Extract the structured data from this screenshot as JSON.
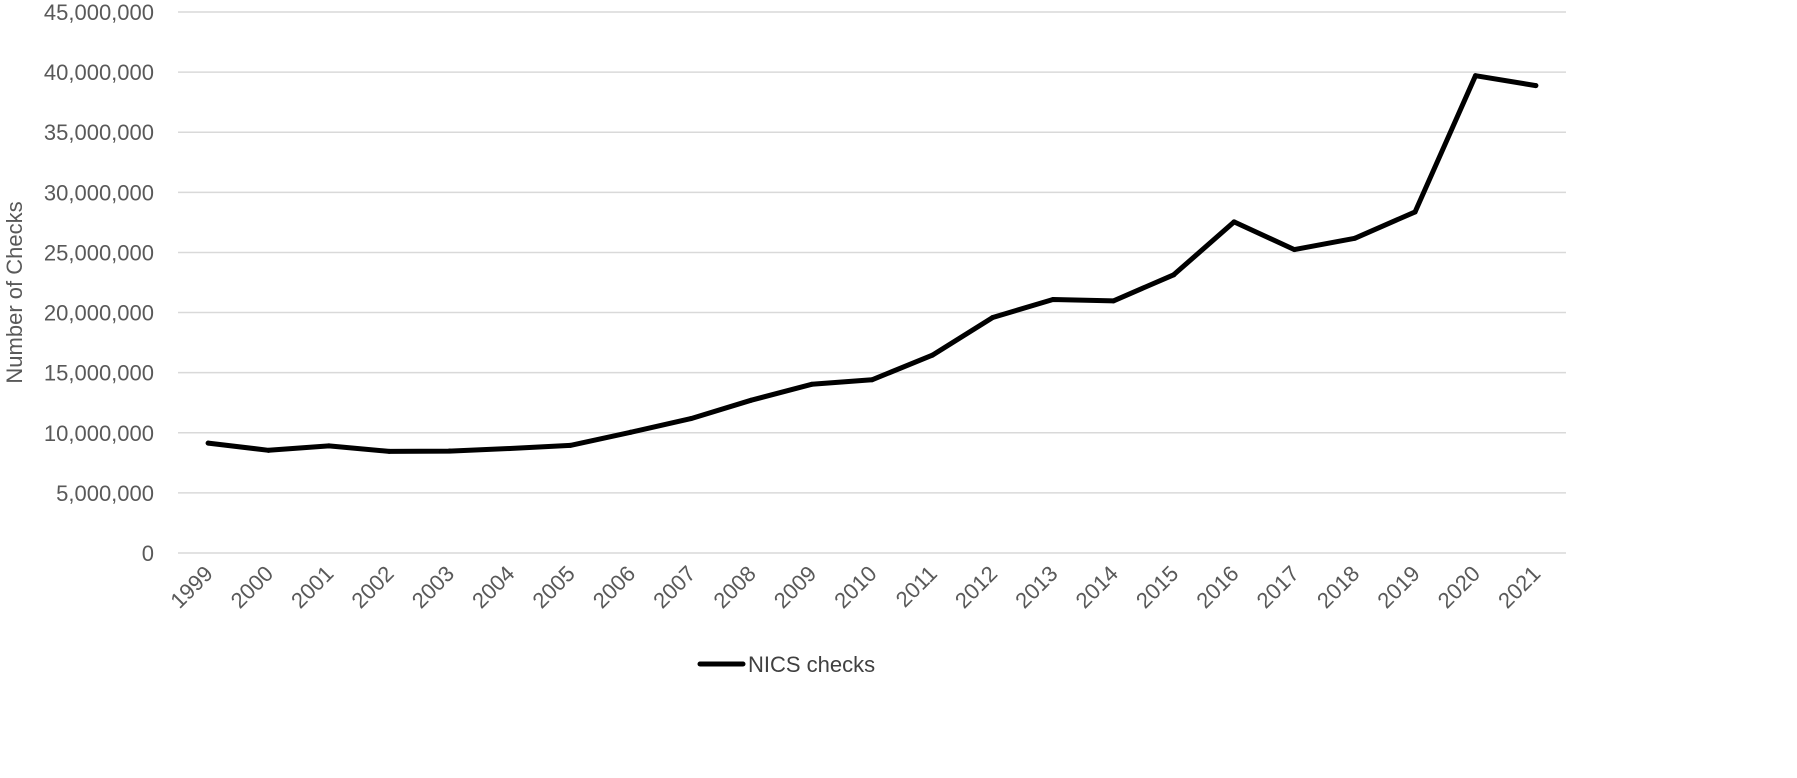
{
  "chart_data": {
    "type": "line",
    "title": "",
    "xlabel": "",
    "ylabel": "Number of Checks",
    "ylim": [
      0,
      45000000
    ],
    "y_ticks": [
      "0",
      "5,000,000",
      "10,000,000",
      "15,000,000",
      "20,000,000",
      "25,000,000",
      "30,000,000",
      "35,000,000",
      "40,000,000",
      "45,000,000"
    ],
    "grid": true,
    "legend": "bottom",
    "categories": [
      "1999",
      "2000",
      "2001",
      "2002",
      "2003",
      "2004",
      "2005",
      "2006",
      "2007",
      "2008",
      "2009",
      "2010",
      "2011",
      "2012",
      "2013",
      "2014",
      "2015",
      "2016",
      "2017",
      "2018",
      "2019",
      "2020",
      "2021"
    ],
    "series": [
      {
        "name": "NICS checks",
        "color": "#000000",
        "values": [
          9140000,
          8540000,
          8910000,
          8450000,
          8480000,
          8690000,
          8950000,
          10040000,
          11180000,
          12710000,
          14030000,
          14410000,
          16450000,
          19590000,
          21090000,
          20970000,
          23140000,
          27540000,
          25240000,
          26180000,
          28370000,
          39700000,
          38880000
        ]
      }
    ]
  }
}
